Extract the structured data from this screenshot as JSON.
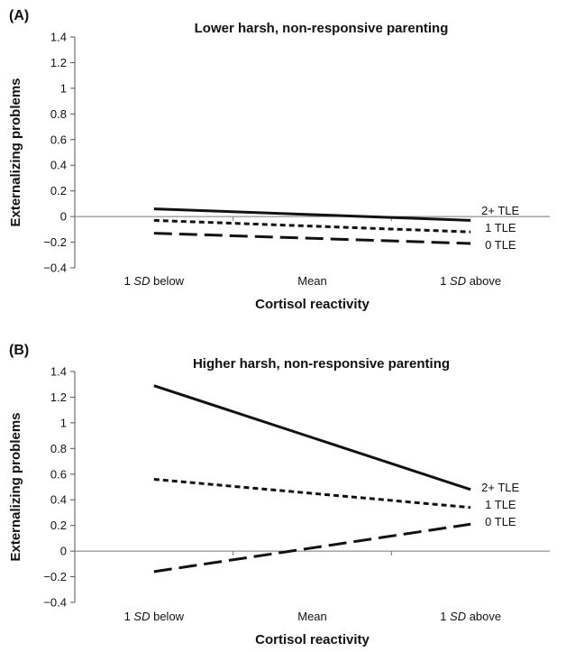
{
  "chart_data": [
    {
      "type": "line",
      "panel_label": "(A)",
      "title": "Lower harsh, non-responsive parenting",
      "xlabel": "Cortisol reactivity",
      "ylabel": "Externalizing problems",
      "categories": [
        {
          "prefix": "1 ",
          "italic": "SD",
          "suffix": " below"
        },
        {
          "prefix": "Mean",
          "italic": "",
          "suffix": ""
        },
        {
          "prefix": "1 ",
          "italic": "SD",
          "suffix": " above"
        }
      ],
      "ylim": [
        -0.4,
        1.4
      ],
      "yticks": [
        "1.4",
        "1.2",
        "1",
        "0.8",
        "0.6",
        "0.4",
        "0.2",
        "0",
        "−0.2",
        "−0.4"
      ],
      "series": [
        {
          "name": "2+ TLE",
          "values": [
            0.06,
            0.015,
            -0.03
          ],
          "style": "solid"
        },
        {
          "name": "1 TLE",
          "values": [
            -0.03,
            -0.075,
            -0.12
          ],
          "style": "short-dash"
        },
        {
          "name": "0 TLE",
          "values": [
            -0.13,
            -0.17,
            -0.21
          ],
          "style": "long-dash"
        }
      ]
    },
    {
      "type": "line",
      "panel_label": "(B)",
      "title": "Higher harsh, non-responsive parenting",
      "xlabel": "Cortisol reactivity",
      "ylabel": "Externalizing problems",
      "categories": [
        {
          "prefix": "1 ",
          "italic": "SD",
          "suffix": " below"
        },
        {
          "prefix": "Mean",
          "italic": "",
          "suffix": ""
        },
        {
          "prefix": "1 ",
          "italic": "SD",
          "suffix": " above"
        }
      ],
      "ylim": [
        -0.4,
        1.4
      ],
      "yticks": [
        "1.4",
        "1.2",
        "1",
        "0.8",
        "0.6",
        "0.4",
        "0.2",
        "0",
        "−0.2",
        "−0.4"
      ],
      "series": [
        {
          "name": "2+ TLE",
          "values": [
            1.29,
            0.885,
            0.48
          ],
          "style": "solid"
        },
        {
          "name": "1 TLE",
          "values": [
            0.56,
            0.45,
            0.34
          ],
          "style": "short-dash"
        },
        {
          "name": "0 TLE",
          "values": [
            -0.16,
            0.025,
            0.21
          ],
          "style": "long-dash"
        }
      ]
    }
  ]
}
